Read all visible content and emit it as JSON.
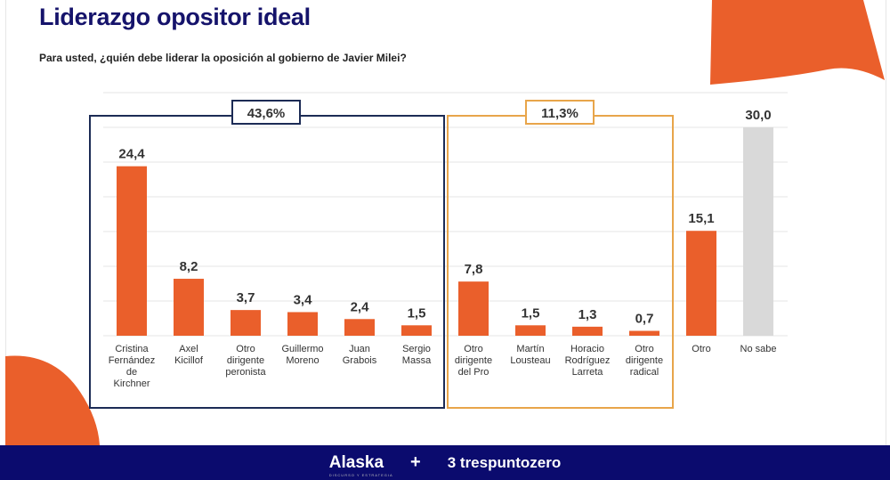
{
  "title": "Liderazgo opositor ideal",
  "subtitle": "Para usted, ¿quién debe liderar la oposición al gobierno de Javier Milei?",
  "footer": {
    "brand1": "Alaska",
    "brand1_tagline": "DISCURSO Y ESTRATEGIA",
    "plus": "+",
    "brand2": "trespuntozero"
  },
  "colors": {
    "bar": "#ea5f2b",
    "bar_nosabe": "#d9d9d9",
    "group1": "#1c2b55",
    "group2": "#e8a54a",
    "footer": "#0b0b6e",
    "title": "#15136b"
  },
  "chart_data": {
    "type": "bar",
    "title": "Liderazgo opositor ideal",
    "categories": [
      [
        "Cristina",
        "Fernández",
        "de",
        "Kirchner"
      ],
      [
        "Axel",
        "Kicillof"
      ],
      [
        "Otro",
        "dirigente",
        "peronista"
      ],
      [
        "Guillermo",
        "Moreno"
      ],
      [
        "Juan",
        "Grabois"
      ],
      [
        "Sergio",
        "Massa"
      ],
      [
        "Otro",
        "dirigente",
        "del Pro"
      ],
      [
        "Martín",
        "Lousteau"
      ],
      [
        "Horacio",
        "Rodríguez",
        "Larreta"
      ],
      [
        "Otro",
        "dirigente",
        "radical"
      ],
      [
        "Otro"
      ],
      [
        "No sabe"
      ]
    ],
    "values": [
      24.4,
      8.2,
      3.7,
      3.4,
      2.4,
      1.5,
      7.8,
      1.5,
      1.3,
      0.7,
      15.1,
      30.0
    ],
    "labels": [
      "24,4",
      "8,2",
      "3,7",
      "3,4",
      "2,4",
      "1,5",
      "7,8",
      "1,5",
      "1,3",
      "0,7",
      "15,1",
      "30,0"
    ],
    "ylim": [
      0,
      35
    ],
    "grid": true,
    "groups": [
      {
        "label": "43,6%",
        "from": 0,
        "to": 5
      },
      {
        "label": "11,3%",
        "from": 6,
        "to": 9
      }
    ]
  }
}
